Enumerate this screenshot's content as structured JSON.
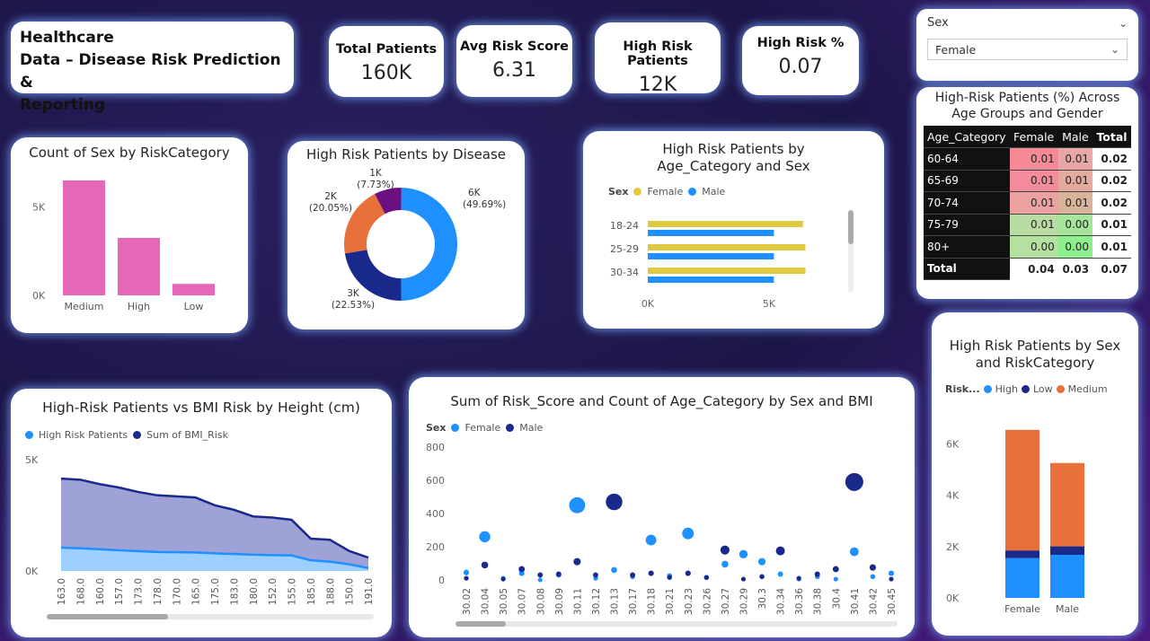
{
  "header": {
    "title_line1": "Healthcare",
    "title_line2": "Data – Disease Risk Prediction &",
    "title_line3": "Reporting"
  },
  "kpis": [
    {
      "label": "Total Patients",
      "value": "160K"
    },
    {
      "label": "Avg Risk Score",
      "value": "6.31"
    },
    {
      "label": "High Risk Patients",
      "value": "12K"
    },
    {
      "label": "High Risk %",
      "value": "0.07"
    }
  ],
  "slicer": {
    "label": "Sex",
    "selected": "Female"
  },
  "matrix": {
    "title": "High-Risk Patients (%) Across Age Groups and Gender",
    "headers": [
      "Age_Category",
      "Female",
      "Male",
      "Total"
    ],
    "rows": [
      {
        "cat": "60-64",
        "female": "0.01",
        "male": "0.01",
        "total": "0.02"
      },
      {
        "cat": "65-69",
        "female": "0.01",
        "male": "0.01",
        "total": "0.02"
      },
      {
        "cat": "70-74",
        "female": "0.01",
        "male": "0.01",
        "total": "0.02"
      },
      {
        "cat": "75-79",
        "female": "0.01",
        "male": "0.00",
        "total": "0.01"
      },
      {
        "cat": "80+",
        "female": "0.00",
        "male": "0.00",
        "total": "0.01"
      }
    ],
    "total": {
      "cat": "Total",
      "female": "0.04",
      "male": "0.03",
      "total": "0.07"
    }
  },
  "colors": {
    "pink": "#e568b8",
    "blue": "#1e90ff",
    "navy": "#1a2a8c",
    "orange": "#e8703a",
    "purple": "#6a1080",
    "gold": "#e0c840",
    "light": "#7ab8ff"
  },
  "chart_data": [
    {
      "id": "sex_by_risk",
      "type": "bar",
      "title": "Count of Sex by RiskCategory",
      "categories": [
        "Medium",
        "High",
        "Low"
      ],
      "values": [
        6500,
        3250,
        650
      ],
      "yticks": [
        "5K",
        "0K"
      ],
      "ylim": [
        0,
        6600
      ]
    },
    {
      "id": "hr_by_disease",
      "type": "pie",
      "title": "High Risk Patients by Disease",
      "slices": [
        {
          "value": 49.69,
          "label": "6K",
          "pct": "(49.69%)"
        },
        {
          "value": 22.53,
          "label": "3K",
          "pct": "(22.53%)"
        },
        {
          "value": 20.05,
          "label": "2K",
          "pct": "(20.05%)"
        },
        {
          "value": 7.73,
          "label": "1K",
          "pct": "(7.73%)"
        }
      ]
    },
    {
      "id": "hr_by_age_sex",
      "type": "bar",
      "title": "High Risk Patients by Age_Category and Sex",
      "legend_title": "Sex",
      "series": [
        {
          "name": "Female",
          "values": [
            6400,
            6500,
            6500
          ]
        },
        {
          "name": "Male",
          "values": [
            5200,
            5200,
            5200
          ]
        }
      ],
      "categories": [
        "18-24",
        "25-29",
        "30-34"
      ],
      "xticks": [
        "0K",
        "5K"
      ],
      "xlim": [
        0,
        9000
      ]
    },
    {
      "id": "hr_by_sex_risk",
      "type": "bar",
      "title": "High Risk Patients by Sex and RiskCategory",
      "legend_title": "Risk...",
      "categories": [
        "Female",
        "Male"
      ],
      "series": [
        {
          "name": "High",
          "values": [
            1550,
            1680
          ]
        },
        {
          "name": "Low",
          "values": [
            300,
            330
          ]
        },
        {
          "name": "Medium",
          "values": [
            4700,
            3250
          ]
        }
      ],
      "yticks": [
        "6K",
        "4K",
        "2K",
        "0K"
      ],
      "ylim": [
        0,
        7000
      ]
    },
    {
      "id": "hr_vs_bmi",
      "type": "area",
      "title": "High-Risk Patients vs BMI Risk by Height (cm)",
      "x": [
        "163.0",
        "168.0",
        "160.0",
        "157.0",
        "173.0",
        "178.0",
        "170.0",
        "165.0",
        "175.0",
        "183.0",
        "180.0",
        "152.0",
        "155.0",
        "185.0",
        "188.0",
        "150.0",
        "191.0"
      ],
      "series": [
        {
          "name": "High Risk Patients",
          "values": [
            1050,
            1020,
            980,
            930,
            890,
            850,
            840,
            830,
            790,
            760,
            730,
            710,
            700,
            480,
            420,
            300,
            130
          ]
        },
        {
          "name": "Sum of BMI_Risk",
          "values": [
            4150,
            4100,
            3900,
            3750,
            3550,
            3400,
            3350,
            3300,
            2950,
            2750,
            2450,
            2400,
            2300,
            1450,
            1400,
            900,
            600
          ]
        }
      ],
      "yticks": [
        "5K",
        "0K"
      ],
      "ylim": [
        0,
        5000
      ]
    },
    {
      "id": "scatter_bmi",
      "type": "scatter",
      "title": "Sum of Risk_Score and Count of Age_Category by Sex and BMI",
      "legend_title": "Sex",
      "x": [
        "30.02",
        "30.04",
        "30.05",
        "30.07",
        "30.08",
        "30.09",
        "30.11",
        "30.12",
        "30.13",
        "30.17",
        "30.18",
        "30.21",
        "30.23",
        "30.26",
        "30.27",
        "30.29",
        "30.3",
        "30.34",
        "30.36",
        "30.38",
        "30.4",
        "30.41",
        "30.42",
        "30.45"
      ],
      "series": [
        {
          "name": "Female",
          "values": [
            45,
            260,
            10,
            40,
            0,
            30,
            450,
            10,
            60,
            20,
            240,
            25,
            280,
            15,
            95,
            155,
            110,
            35,
            5,
            20,
            5,
            170,
            20,
            40
          ]
        },
        {
          "name": "Male",
          "values": [
            10,
            90,
            5,
            65,
            30,
            35,
            110,
            30,
            470,
            30,
            40,
            15,
            40,
            15,
            180,
            5,
            20,
            175,
            10,
            35,
            65,
            590,
            75,
            5
          ]
        }
      ],
      "yticks": [
        "800",
        "600",
        "400",
        "200",
        "0"
      ],
      "ylim": [
        0,
        800
      ]
    }
  ]
}
